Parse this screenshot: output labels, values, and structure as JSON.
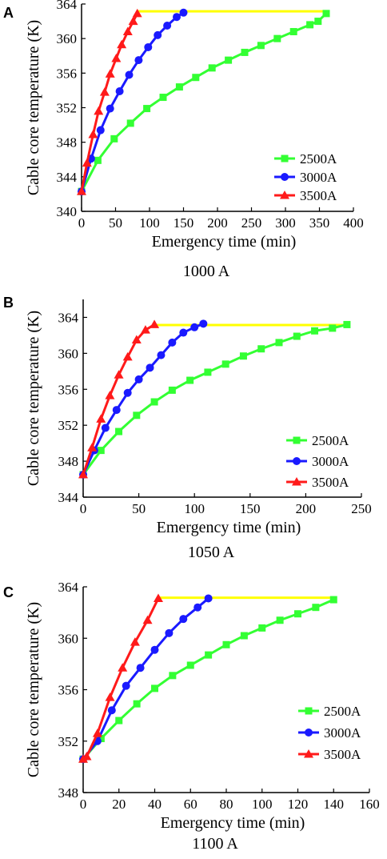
{
  "colors": {
    "2500A": "#33ff33",
    "3000A": "#1a1aff",
    "3500A": "#ff1a1a",
    "limit": "#ffff00"
  },
  "chart_data": [
    {
      "type": "line",
      "panel_label": "A",
      "caption": "1000 A",
      "xlabel": "Emergency time (min)",
      "ylabel": "Cable core temperature (K)",
      "xlim": [
        0,
        400
      ],
      "ylim": [
        340,
        364
      ],
      "xticks": [
        0,
        50,
        100,
        150,
        200,
        250,
        300,
        350,
        400
      ],
      "yticks": [
        340,
        344,
        348,
        352,
        356,
        360,
        364
      ],
      "legend_position": "bottom-right",
      "limit_temperature": 363.15,
      "series": [
        {
          "name": "2500A",
          "color": "#33ff33",
          "marker": "square",
          "x": [
            0,
            24,
            48,
            72,
            96,
            120,
            144,
            168,
            192,
            216,
            240,
            264,
            288,
            312,
            336,
            348,
            360
          ],
          "y": [
            342.3,
            345.9,
            348.4,
            350.2,
            351.9,
            353.2,
            354.4,
            355.5,
            356.6,
            357.5,
            358.4,
            359.2,
            360.0,
            360.8,
            361.6,
            362.0,
            362.9
          ]
        },
        {
          "name": "3000A",
          "color": "#1a1aff",
          "marker": "circle",
          "x": [
            0,
            14,
            28,
            42,
            56,
            70,
            84,
            98,
            112,
            126,
            140,
            150
          ],
          "y": [
            342.3,
            346.1,
            349.4,
            351.9,
            353.9,
            355.8,
            357.5,
            359.0,
            360.4,
            361.5,
            362.5,
            363.0
          ]
        },
        {
          "name": "3500A",
          "color": "#ff1a1a",
          "marker": "triangle",
          "x": [
            0,
            8,
            17,
            25,
            34,
            42,
            51,
            59,
            68,
            76,
            82
          ],
          "y": [
            342.3,
            345.6,
            348.9,
            351.6,
            353.8,
            355.9,
            357.7,
            359.3,
            360.8,
            362.0,
            362.9
          ]
        }
      ]
    },
    {
      "type": "line",
      "panel_label": "B",
      "caption": "1050 A",
      "xlabel": "Emergency time (min)",
      "ylabel": "Cable core temperature (K)",
      "xlim": [
        0,
        250
      ],
      "ylim": [
        344,
        366
      ],
      "xticks": [
        0,
        50,
        100,
        150,
        200,
        250
      ],
      "yticks": [
        344,
        348,
        352,
        356,
        360,
        364
      ],
      "legend_position": "bottom-right",
      "limit_temperature": 363.15,
      "series": [
        {
          "name": "2500A",
          "color": "#33ff33",
          "marker": "square",
          "x": [
            0,
            16,
            32,
            48,
            64,
            80,
            96,
            112,
            128,
            144,
            160,
            176,
            192,
            208,
            224,
            237
          ],
          "y": [
            346.5,
            349.2,
            351.3,
            353.1,
            354.6,
            355.9,
            357.0,
            357.9,
            358.8,
            359.7,
            360.5,
            361.2,
            361.9,
            362.5,
            362.8,
            363.2
          ]
        },
        {
          "name": "3000A",
          "color": "#1a1aff",
          "marker": "circle",
          "x": [
            0,
            10,
            20,
            30,
            40,
            50,
            60,
            70,
            80,
            90,
            100,
            108
          ],
          "y": [
            346.5,
            349.2,
            351.7,
            353.7,
            355.6,
            357.1,
            358.4,
            359.8,
            361.2,
            362.3,
            362.9,
            363.3
          ]
        },
        {
          "name": "3500A",
          "color": "#ff1a1a",
          "marker": "triangle",
          "x": [
            0,
            8,
            16,
            24,
            32,
            40,
            48,
            56,
            64
          ],
          "y": [
            346.5,
            349.5,
            352.7,
            355.3,
            357.6,
            359.6,
            361.5,
            362.6,
            363.2
          ]
        }
      ]
    },
    {
      "type": "line",
      "panel_label": "C",
      "caption": "1100 A",
      "xlabel": "Emergency time (min)",
      "ylabel": "Cable core temperature (K)",
      "xlim": [
        0,
        160
      ],
      "ylim": [
        348,
        364
      ],
      "xticks": [
        0,
        20,
        40,
        60,
        80,
        100,
        120,
        140,
        160
      ],
      "yticks": [
        348,
        352,
        356,
        360,
        364
      ],
      "legend_position": "bottom-right",
      "limit_temperature": 363.15,
      "series": [
        {
          "name": "2500A",
          "color": "#33ff33",
          "marker": "square",
          "x": [
            0,
            10,
            20,
            30,
            40,
            50,
            60,
            70,
            80,
            90,
            100,
            110,
            120,
            130,
            140
          ],
          "y": [
            350.6,
            352.2,
            353.6,
            354.9,
            356.1,
            357.1,
            357.9,
            358.7,
            359.5,
            360.2,
            360.8,
            361.4,
            361.9,
            362.4,
            363.0
          ]
        },
        {
          "name": "3000A",
          "color": "#1a1aff",
          "marker": "circle",
          "x": [
            0,
            8,
            16,
            24,
            32,
            40,
            48,
            56,
            64,
            70
          ],
          "y": [
            350.6,
            352.0,
            354.4,
            356.3,
            357.7,
            359.1,
            360.4,
            361.5,
            362.4,
            363.1
          ]
        },
        {
          "name": "3500A",
          "color": "#ff1a1a",
          "marker": "triangle",
          "x": [
            0,
            2,
            8,
            15,
            22,
            29,
            36,
            42
          ],
          "y": [
            350.6,
            350.8,
            352.6,
            355.4,
            357.7,
            359.7,
            361.4,
            363.1
          ]
        }
      ]
    }
  ]
}
